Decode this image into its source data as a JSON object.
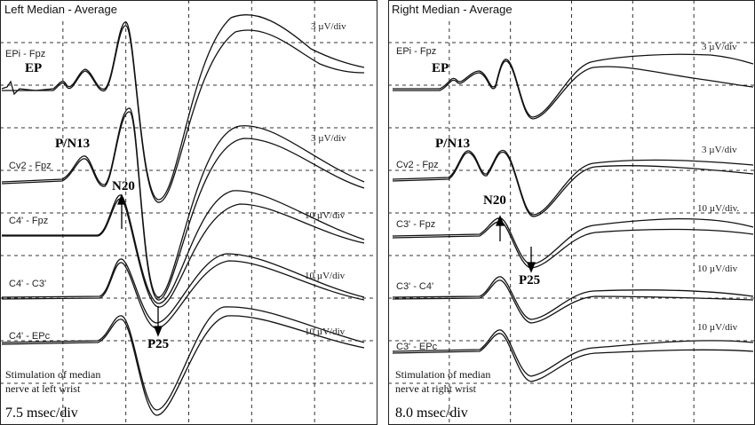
{
  "left_panel": {
    "title": "Left Median - Average",
    "channels": [
      {
        "label": "EPi - Fpz",
        "scale": "3 µV/div"
      },
      {
        "label": "Cv2 - Fpz",
        "scale": "3 µV/div"
      },
      {
        "label": "C4' - Fpz",
        "scale": "10 µV/div"
      },
      {
        "label": "C4' - C3'",
        "scale": "10 µV/div"
      },
      {
        "label": "C4' - EPc",
        "scale": "10 µV/div"
      }
    ],
    "peaks": {
      "ep": "EP",
      "pn13": "P/N13",
      "n20": "N20",
      "p25": "P25"
    },
    "stimulation": [
      "Stimulation of median",
      "nerve at left wrist"
    ],
    "timebase": "7.5 msec/div"
  },
  "right_panel": {
    "title": "Right Median - Average",
    "channels": [
      {
        "label": "EPi - Fpz",
        "scale": "3 µV/div"
      },
      {
        "label": "Cv2 - Fpz",
        "scale": "3 µV/div"
      },
      {
        "label": "C3' - Fpz",
        "scale": "10 µV/div."
      },
      {
        "label": "C3' - C4'",
        "scale": "10 µV/div"
      },
      {
        "label": "C3' - EPc",
        "scale": "10 µV/div"
      }
    ],
    "peaks": {
      "ep": "EP",
      "pn13": "P/N13",
      "n20": "N20",
      "p25": "P25"
    },
    "stimulation": [
      "Stimulation of median",
      "nerve at right wrist"
    ],
    "timebase": "8.0 msec/div"
  }
}
